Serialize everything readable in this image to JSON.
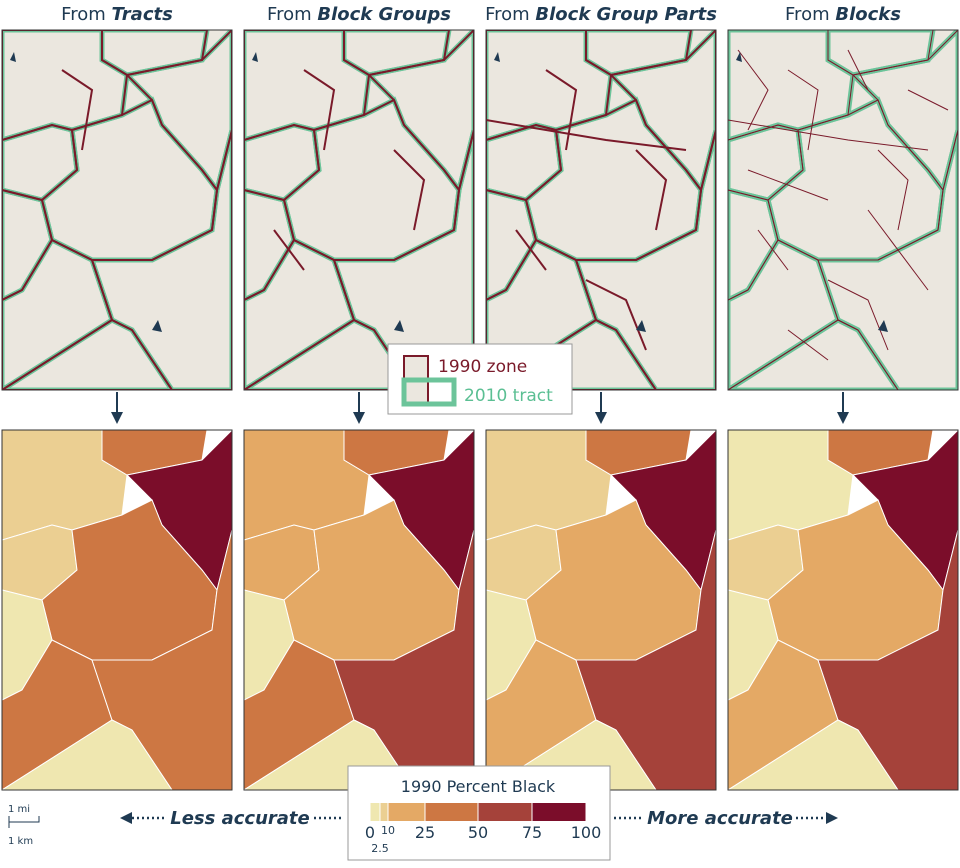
{
  "panels": [
    {
      "prefix": "From ",
      "name": "Tracts"
    },
    {
      "prefix": "From ",
      "name": "Block Groups"
    },
    {
      "prefix": "From ",
      "name": "Block Group Parts"
    },
    {
      "prefix": "From ",
      "name": "Blocks"
    }
  ],
  "zone_legend": {
    "zone": "1990 zone",
    "tract": "2010 tract"
  },
  "color_legend": {
    "title": "1990 Percent Black",
    "ticks": [
      0,
      2.5,
      10,
      25,
      50,
      75,
      100
    ],
    "colors": [
      "#efe7b0",
      "#ebcf92",
      "#e4a965",
      "#cd7743",
      "#a5423a",
      "#7b0d2a"
    ]
  },
  "accuracy": {
    "less": "Less accurate",
    "more": "More accurate"
  },
  "scale": {
    "mi": "1 mi",
    "km": "1 km"
  }
}
